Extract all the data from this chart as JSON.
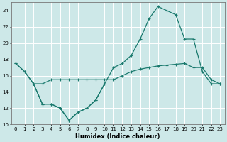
{
  "xlabel": "Humidex (Indice chaleur)",
  "xlim": [
    -0.5,
    23.5
  ],
  "ylim": [
    10,
    25
  ],
  "yticks": [
    10,
    12,
    14,
    16,
    18,
    20,
    22,
    24
  ],
  "xticks": [
    0,
    1,
    2,
    3,
    4,
    5,
    6,
    7,
    8,
    9,
    10,
    11,
    12,
    13,
    14,
    15,
    16,
    17,
    18,
    19,
    20,
    21,
    22,
    23
  ],
  "bg_color": "#cde8e8",
  "line_color": "#1a7a6e",
  "grid_color": "#ffffff",
  "line1_x": [
    0,
    1,
    2,
    3,
    4,
    5,
    6,
    7,
    8,
    9,
    10,
    11,
    12,
    13,
    14,
    15,
    16,
    17,
    18,
    19,
    20,
    21,
    22,
    23
  ],
  "line1_y": [
    17.5,
    16.5,
    15.0,
    15.0,
    15.5,
    15.5,
    15.5,
    15.5,
    15.5,
    15.5,
    15.5,
    15.5,
    16.0,
    16.5,
    16.8,
    17.0,
    17.2,
    17.3,
    17.4,
    17.5,
    17.0,
    17.0,
    15.5,
    15.0
  ],
  "line2_x": [
    0,
    1,
    2,
    3,
    4,
    5,
    6,
    7,
    8,
    9,
    10,
    11,
    12,
    13,
    14,
    15,
    16,
    17,
    18,
    19,
    20,
    21,
    22,
    23
  ],
  "line2_y": [
    17.5,
    16.5,
    15.0,
    12.5,
    12.5,
    12.0,
    10.5,
    11.5,
    12.0,
    13.0,
    15.0,
    17.0,
    17.5,
    18.5,
    20.5,
    23.0,
    24.5,
    24.0,
    23.5,
    20.5,
    20.5,
    16.5,
    15.0,
    15.0
  ],
  "line3_x": [
    2,
    3,
    4,
    5,
    6,
    7,
    8,
    9,
    10
  ],
  "line3_y": [
    15.0,
    12.5,
    12.5,
    12.0,
    10.5,
    11.5,
    12.0,
    13.0,
    15.0
  ]
}
